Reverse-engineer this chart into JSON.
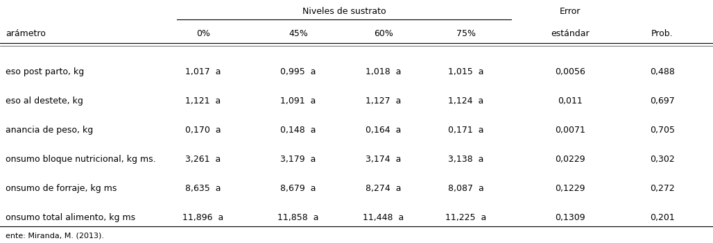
{
  "col_header_top": "Niveles de sustrato",
  "col_header_error": "Error",
  "col_subheaders": [
    "0%",
    "45%",
    "60%",
    "75%",
    "estándar",
    "Prob."
  ],
  "row_label_header": "arámetro",
  "rows": [
    {
      "label": "eso post parto, kg",
      "values": [
        "1,017  a",
        "0,995  a",
        "1,018  a",
        "1,015  a",
        "0,0056",
        "0,488"
      ]
    },
    {
      "label": "eso al destete, kg",
      "values": [
        "1,121  a",
        "1,091  a",
        "1,127  a",
        "1,124  a",
        "0,011",
        "0,697"
      ]
    },
    {
      "label": "anancia de peso, kg",
      "values": [
        "0,170  a",
        "0,148  a",
        "0,164  a",
        "0,171  a",
        "0,0071",
        "0,705"
      ]
    },
    {
      "label": "onsumo bloque nutricional, kg ms.",
      "values": [
        "3,261  a",
        "3,179  a",
        "3,174  a",
        "3,138  a",
        "0,0229",
        "0,302"
      ]
    },
    {
      "label": "onsumo de forraje, kg ms",
      "values": [
        "8,635  a",
        "8,679  a",
        "8,274  a",
        "8,087  a",
        "0,1229",
        "0,272"
      ]
    },
    {
      "label": "onsumo total alimento, kg ms",
      "values": [
        "11,896  a",
        "11,858  a",
        "11,448  a",
        "11,225  a",
        "0,1309",
        "0,201"
      ]
    }
  ],
  "footnote": "ente: Miranda, M. (2013).",
  "font_size": 9.0,
  "bg_color": "#ffffff"
}
